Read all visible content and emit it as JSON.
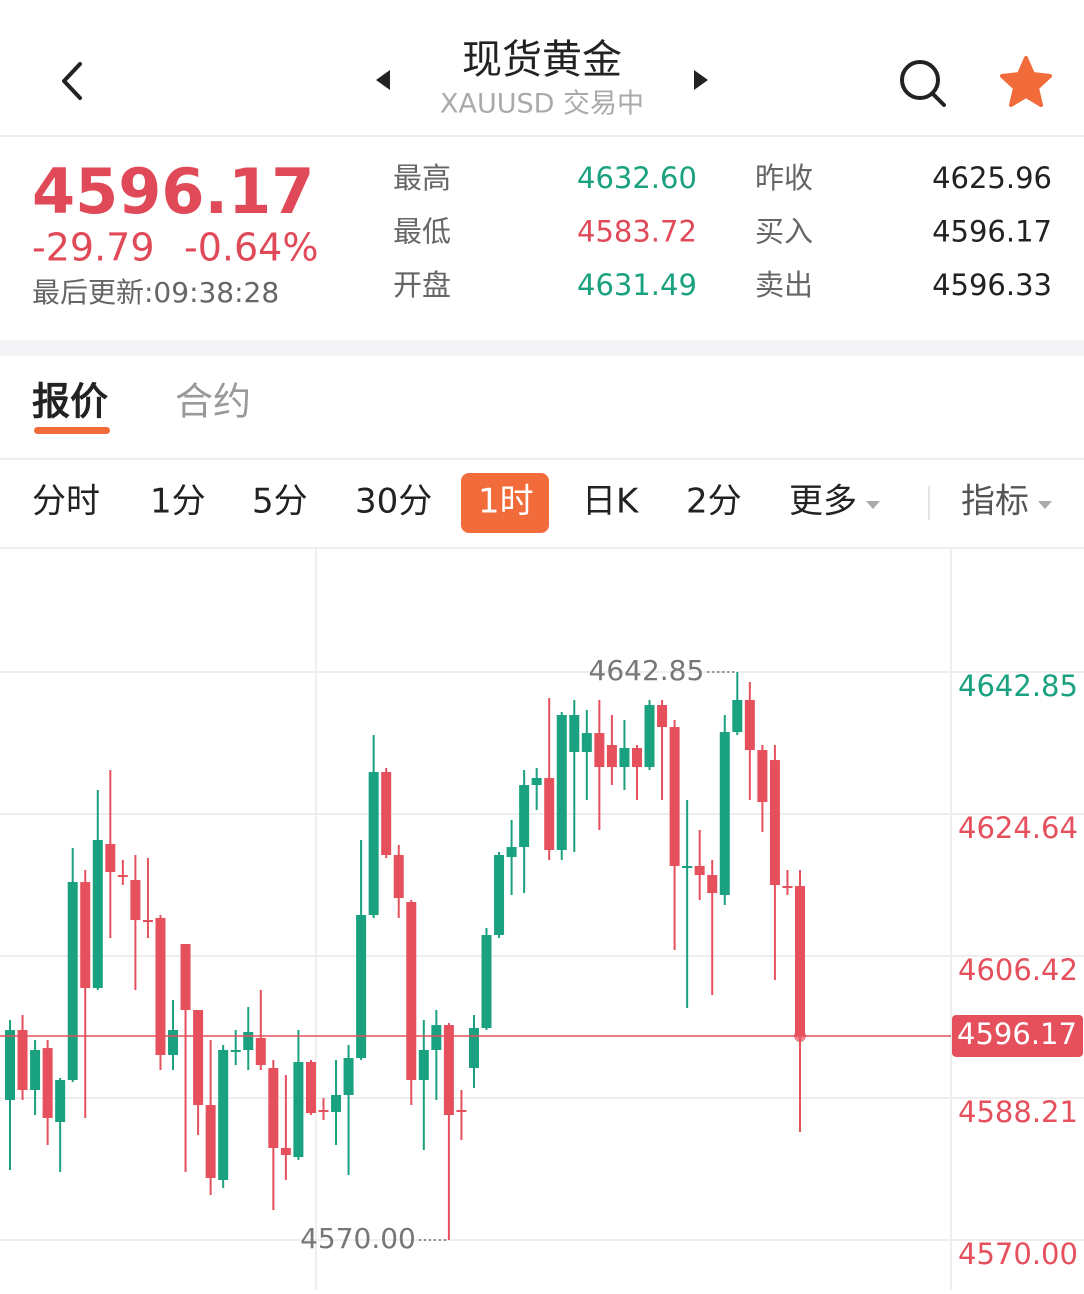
{
  "header": {
    "title": "现货黄金",
    "subtitle": "XAUUSD 交易中"
  },
  "quote": {
    "price": "4596.17",
    "change": "-29.79",
    "change_pct": "-0.64%",
    "updated": "最后更新:09:38:28",
    "stats": [
      [
        "最高",
        "4632.60",
        "昨收",
        "4625.96"
      ],
      [
        "最低",
        "4583.72",
        "买入",
        "4596.17"
      ],
      [
        "开盘",
        "4631.49",
        "卖出",
        "4596.33"
      ]
    ]
  },
  "tabs": {
    "items": [
      "报价",
      "合约"
    ],
    "active": 0
  },
  "periods": {
    "items": [
      "分时",
      "1分",
      "5分",
      "30分",
      "1时",
      "日K",
      "2分",
      "更多"
    ],
    "active": 4,
    "indicator": "指标"
  },
  "chart_data": {
    "type": "candlestick",
    "up_color": "#1aa17f",
    "down_color": "#e5505c",
    "ylim": [
      4563.59,
      4658.75
    ],
    "yticks": [
      4642.85,
      4624.64,
      4606.42,
      4588.21,
      {
        "value": 4570,
        "label": "4570.00"
      }
    ],
    "grid": true,
    "current_price": 4596.17,
    "annotations": [
      {
        "value": 4642.85,
        "label": "4642.85"
      },
      {
        "value": 4570,
        "label": "4570.00"
      }
    ],
    "open": [
      4587.96,
      4596.93,
      4589.24,
      4594.62,
      4585.13,
      4590.52,
      4615.91,
      4602.32,
      4620.79,
      4616.81,
      4616.17,
      4611.04,
      4611.3,
      4593.73,
      4607.96,
      4599.5,
      4587.31,
      4577.7,
      4594.11,
      4594.37,
      4595.91,
      4592.06,
      4581.8,
      4580.64,
      4592.83,
      4586.67,
      4586.42,
      4588.6,
      4593.34,
      4611.68,
      4630.02,
      4619.38,
      4613.35,
      4590.52,
      4594.37,
      4597.57,
      4586.67,
      4592.06,
      4597.19,
      4609.12,
      4619.12,
      4620.4,
      4628.35,
      4629.25,
      4620.02,
      4632.59,
      4632.59,
      4635.02,
      4633.48,
      4630.66,
      4633.1,
      4630.66,
      4638.61,
      4635.79,
      4617.71,
      4617.97,
      4616.81,
      4614.25,
      4635.15,
      4639.26,
      4632.84,
      4631.56,
      4615.4,
      4615.4
    ],
    "high": [
      4598.22,
      4598.86,
      4595.65,
      4595.65,
      4590.78,
      4620.27,
      4617.45,
      4627.71,
      4630.28,
      4618.74,
      4619.38,
      4618.99,
      4611.68,
      4600.78,
      4607.96,
      4599.5,
      4595.65,
      4595.01,
      4596.93,
      4599.88,
      4602.06,
      4593.09,
      4591.16,
      4596.93,
      4593.09,
      4588.21,
      4593.09,
      4595.01,
      4621.3,
      4634.77,
      4630.53,
      4620.66,
      4613.61,
      4598.22,
      4599.5,
      4597.83,
      4589.24,
      4598.86,
      4610.01,
      4619.76,
      4623.87,
      4630.28,
      4630.53,
      4639.51,
      4637.72,
      4639.26,
      4637.97,
      4639.26,
      4637.33,
      4636.69,
      4633.48,
      4639.26,
      4639.26,
      4636.69,
      4626.43,
      4622.58,
      4618.74,
      4637.33,
      4642.85,
      4641.56,
      4633.48,
      4633.48,
      4617.45,
      4617.45
    ],
    "low": [
      4578.98,
      4587.96,
      4586.03,
      4582.18,
      4578.72,
      4590.26,
      4585.65,
      4602.06,
      4608.73,
      4615.53,
      4602.06,
      4608.73,
      4591.8,
      4591.8,
      4578.72,
      4583.47,
      4575.77,
      4576.67,
      4592.44,
      4591.8,
      4591.8,
      4573.85,
      4577.7,
      4580.26,
      4586.03,
      4585.39,
      4582.18,
      4578.34,
      4593.09,
      4611.3,
      4618.99,
      4611.3,
      4587.31,
      4581.54,
      4587.96,
      4570.0,
      4582.83,
      4589.49,
      4596.93,
      4608.73,
      4614.25,
      4614.5,
      4625.15,
      4618.74,
      4618.74,
      4619.76,
      4626.43,
      4622.58,
      4628.35,
      4627.71,
      4626.43,
      4630.28,
      4626.43,
      4607.19,
      4599.75,
      4613.61,
      4601.42,
      4612.96,
      4634.77,
      4626.43,
      4622.33,
      4603.35,
      4614.25,
      4583.85
    ],
    "close": [
      4596.93,
      4589.24,
      4594.37,
      4585.65,
      4590.52,
      4615.91,
      4602.32,
      4621.3,
      4617.2,
      4616.55,
      4611.04,
      4610.78,
      4593.73,
      4596.93,
      4599.5,
      4587.31,
      4577.95,
      4594.37,
      4594.37,
      4596.68,
      4592.44,
      4581.8,
      4580.9,
      4592.83,
      4586.29,
      4586.42,
      4588.6,
      4593.34,
      4611.68,
      4630.02,
      4619.38,
      4613.86,
      4590.52,
      4594.37,
      4597.57,
      4586.03,
      4586.42,
      4597.19,
      4609.12,
      4619.38,
      4620.4,
      4628.35,
      4629.25,
      4620.02,
      4637.33,
      4637.33,
      4635.02,
      4630.66,
      4630.66,
      4633.1,
      4630.66,
      4638.61,
      4635.79,
      4617.97,
      4617.97,
      4616.81,
      4614.5,
      4635.15,
      4639.26,
      4632.84,
      4626.17,
      4615.53,
      4615.14,
      4596.17
    ]
  }
}
